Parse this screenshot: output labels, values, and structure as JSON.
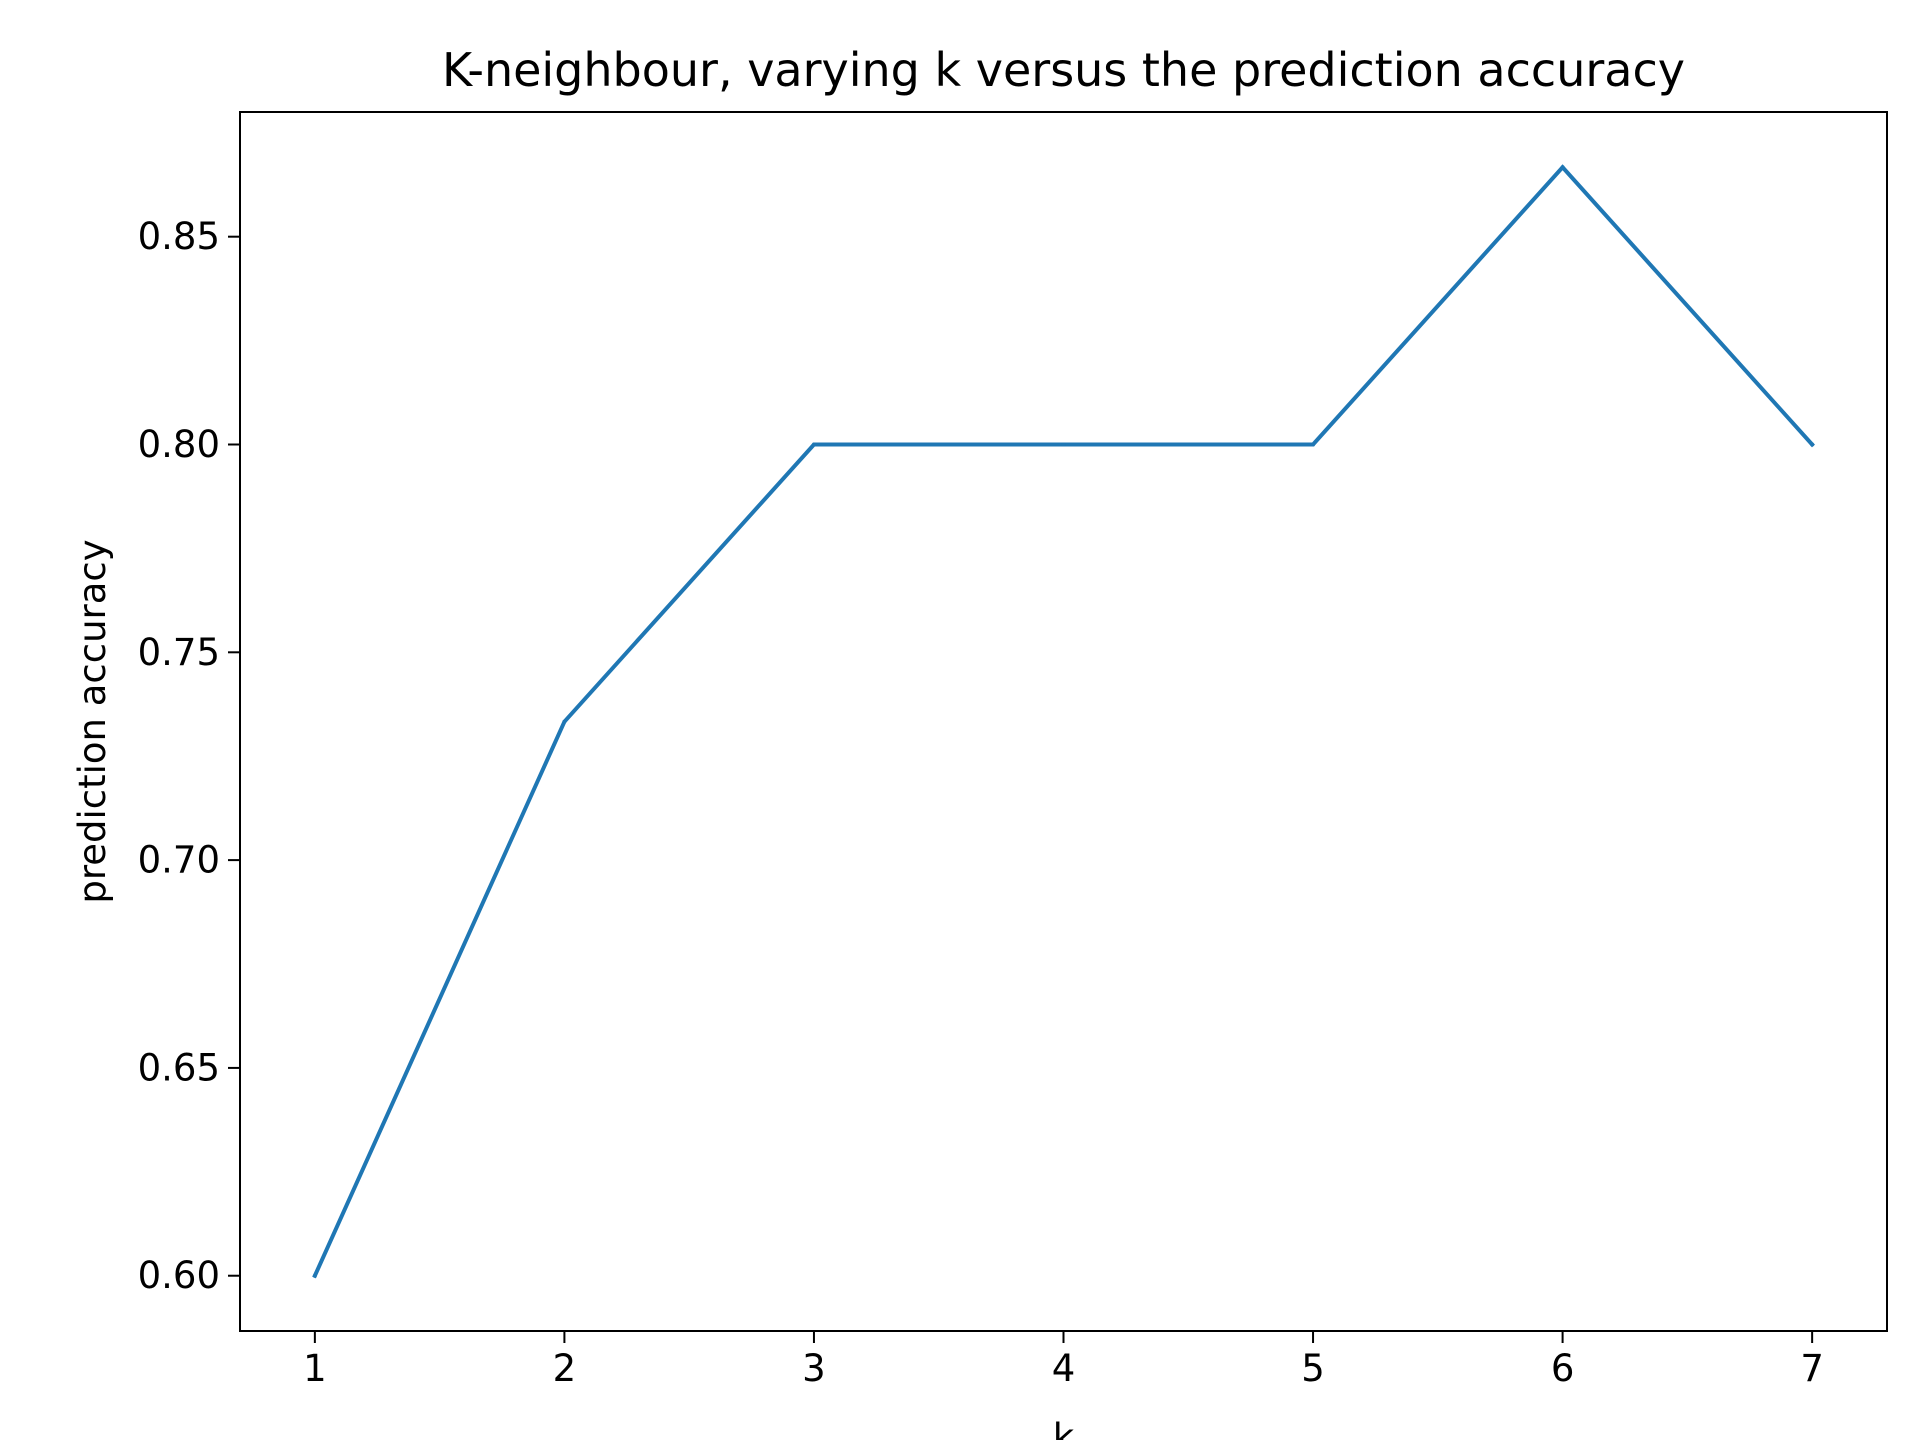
{
  "chart_data": {
    "type": "line",
    "title": "K-neighbour, varying k versus the prediction accuracy",
    "xlabel": "k",
    "ylabel": "prediction accuracy",
    "x": [
      1,
      2,
      3,
      4,
      5,
      6,
      7
    ],
    "series": [
      {
        "values": [
          0.6,
          0.7333,
          0.8,
          0.8,
          0.8,
          0.8667,
          0.8
        ]
      }
    ],
    "xlim": [
      0.7,
      7.3
    ],
    "ylim": [
      0.5867,
      0.88
    ],
    "xticks": [
      "1",
      "2",
      "3",
      "4",
      "5",
      "6",
      "7"
    ],
    "yticks": [
      "0.60",
      "0.65",
      "0.70",
      "0.75",
      "0.80",
      "0.85"
    ],
    "grid": false,
    "line_color": "#1f77b4",
    "axes_color": "#000000"
  }
}
